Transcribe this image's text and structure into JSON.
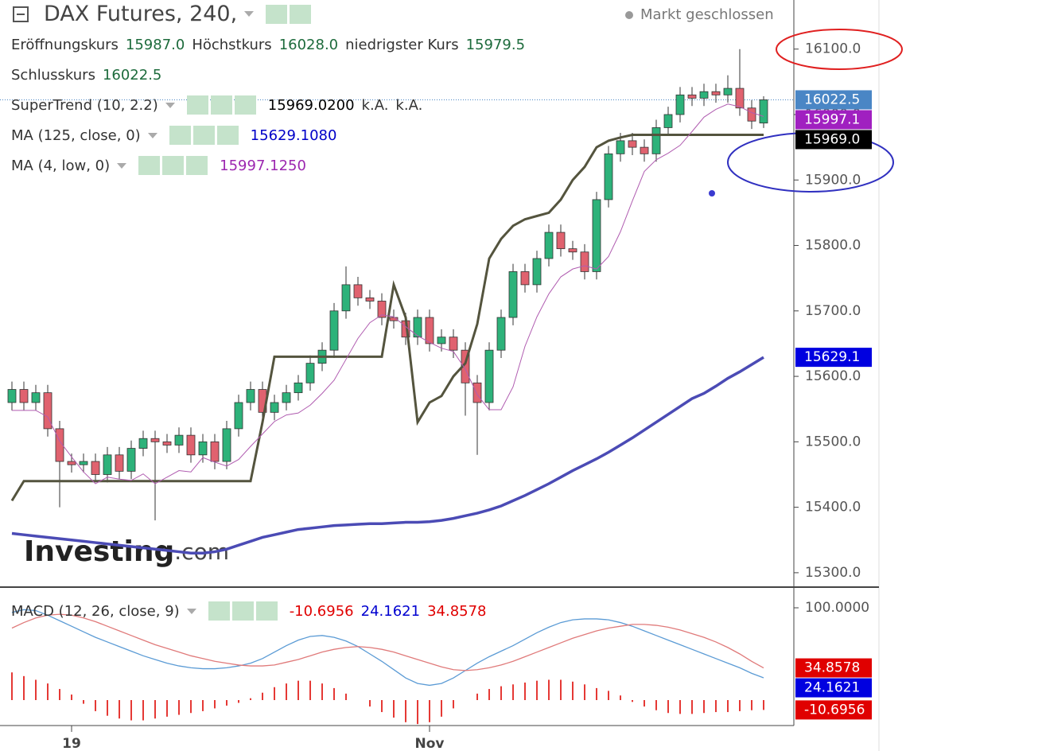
{
  "chart_data": [
    {
      "type": "candlestick",
      "title": "DAX Futures, 240,",
      "status": "Markt geschlossen",
      "categories": [
        null,
        null,
        null,
        null,
        null,
        "19",
        null,
        null,
        null,
        null,
        null,
        null,
        null,
        null,
        null,
        null,
        null,
        null,
        null,
        null,
        null,
        null,
        null,
        null,
        null,
        null,
        null,
        null,
        null,
        null,
        null,
        null,
        null,
        null,
        null,
        "Nov",
        null,
        null,
        null,
        null,
        null,
        null,
        null,
        null,
        null,
        null,
        null,
        null,
        null,
        null,
        null,
        null,
        null,
        null,
        null,
        null,
        null,
        null,
        null,
        null,
        null,
        null,
        null,
        null
      ],
      "open": [
        15560,
        15580,
        15560,
        15575,
        15520,
        15470,
        15465,
        15470,
        15450,
        15480,
        15455,
        15490,
        15505,
        15500,
        15495,
        15510,
        15480,
        15500,
        15470,
        15520,
        15560,
        15580,
        15545,
        15560,
        15575,
        15590,
        15620,
        15640,
        15700,
        15740,
        15720,
        15715,
        15690,
        15685,
        15660,
        15690,
        15650,
        15660,
        15640,
        15590,
        15560,
        15640,
        15690,
        15760,
        15740,
        15780,
        15820,
        15795,
        15790,
        15760,
        15870,
        15940,
        15960,
        15950,
        15940,
        15980,
        16000,
        16030,
        16025,
        16035,
        16030,
        16040,
        16010,
        15987
      ],
      "high": [
        15592,
        15592,
        15587,
        15587,
        15532,
        15482,
        15482,
        15482,
        15492,
        15492,
        15502,
        15517,
        15517,
        15512,
        15522,
        15522,
        15512,
        15512,
        15532,
        15572,
        15592,
        15592,
        15572,
        15587,
        15602,
        15632,
        15652,
        15712,
        15768,
        15752,
        15732,
        15727,
        15702,
        15697,
        15702,
        15702,
        15672,
        15672,
        15652,
        15602,
        15652,
        15702,
        15772,
        15772,
        15792,
        15832,
        15832,
        15807,
        15802,
        15882,
        15952,
        15972,
        15972,
        15962,
        15992,
        16012,
        16042,
        16042,
        16047,
        16047,
        16060,
        16100,
        16022,
        16028
      ],
      "low": [
        15548,
        15548,
        15548,
        15508,
        15400,
        15453,
        15453,
        15438,
        15438,
        15443,
        15443,
        15478,
        15380,
        15483,
        15483,
        15468,
        15468,
        15458,
        15458,
        15508,
        15548,
        15533,
        15533,
        15548,
        15563,
        15578,
        15608,
        15628,
        15688,
        15708,
        15703,
        15678,
        15673,
        15648,
        15648,
        15638,
        15638,
        15628,
        15540,
        15480,
        15548,
        15628,
        15678,
        15728,
        15728,
        15768,
        15783,
        15778,
        15748,
        15748,
        15858,
        15928,
        15938,
        15928,
        15928,
        15968,
        15988,
        16013,
        16013,
        16018,
        16018,
        15998,
        15978,
        15979.5
      ],
      "close": [
        15580,
        15560,
        15575,
        15520,
        15470,
        15465,
        15470,
        15450,
        15480,
        15455,
        15490,
        15505,
        15500,
        15495,
        15510,
        15480,
        15500,
        15470,
        15520,
        15560,
        15580,
        15545,
        15560,
        15575,
        15590,
        15620,
        15640,
        15700,
        15740,
        15720,
        15715,
        15690,
        15685,
        15660,
        15690,
        15650,
        15660,
        15640,
        15590,
        15560,
        15640,
        15690,
        15760,
        15740,
        15780,
        15820,
        15795,
        15790,
        15760,
        15870,
        15940,
        15960,
        15950,
        15940,
        15980,
        16000,
        16030,
        16025,
        16035,
        16030,
        16040,
        16010,
        15990,
        16022.5
      ],
      "ohlc_names": [
        "Eröffnungskurs",
        "Höchstkurs",
        "niedrigster Kurs",
        "Schlusskurs"
      ],
      "ohlc_value_labels": [
        "15987.0",
        "16028.0",
        "15979.5",
        "16022.5"
      ],
      "close_badge": "16022.5",
      "up_color": "#2db27a",
      "down_color": "#e0626f",
      "series": [
        {
          "name": "SuperTrend (10, 2.2)",
          "color": "#54543e",
          "legend_value": "15969.0200",
          "legend_extra": [
            "k.A.",
            "k.A."
          ],
          "badge": "15969.0",
          "values": [
            15410,
            15440,
            15440,
            15440,
            15440,
            15440,
            15440,
            15440,
            15440,
            15440,
            15440,
            15440,
            15440,
            15440,
            15440,
            15440,
            15440,
            15440,
            15440,
            15440,
            15440,
            15530,
            15630,
            15630,
            15630,
            15630,
            15630,
            15630,
            15630,
            15630,
            15630,
            15630,
            15740,
            15690,
            15530,
            15560,
            15570,
            15600,
            15620,
            15680,
            15780,
            15810,
            15830,
            15840,
            15845,
            15850,
            15870,
            15900,
            15920,
            15950,
            15960,
            15965,
            15969,
            15969,
            15969,
            15969,
            15969,
            15969,
            15969,
            15969,
            15969,
            15969,
            15969,
            15969.02
          ]
        },
        {
          "name": "MA (125, close, 0)",
          "color": "#4b4bb5",
          "legend_value": "15629.1080",
          "badge": "15629.1",
          "values": [
            15360,
            15358,
            15356,
            15354,
            15352,
            15350,
            15348,
            15346,
            15344,
            15342,
            15340,
            15338,
            15336,
            15334,
            15332,
            15330,
            15330,
            15332,
            15336,
            15342,
            15348,
            15354,
            15358,
            15362,
            15366,
            15368,
            15370,
            15372,
            15373,
            15374,
            15375,
            15375,
            15376,
            15377,
            15377,
            15378,
            15380,
            15383,
            15387,
            15391,
            15396,
            15402,
            15410,
            15418,
            15427,
            15436,
            15446,
            15456,
            15465,
            15474,
            15484,
            15495,
            15506,
            15518,
            15530,
            15542,
            15554,
            15566,
            15574,
            15585,
            15597,
            15607,
            15618,
            15629.108
          ]
        },
        {
          "name": "MA (4, low, 0)",
          "color": "#b05cb0",
          "legend_value": "15997.1250",
          "badge": "15997.1",
          "values": [
            15548,
            15548,
            15548,
            15538,
            15501,
            15477,
            15454,
            15436,
            15446,
            15443,
            15441,
            15451,
            15436,
            15446,
            15456,
            15454,
            15476,
            15469,
            15463,
            15473,
            15493,
            15512,
            15531,
            15541,
            15544,
            15556,
            15574,
            15594,
            15626,
            15658,
            15682,
            15694,
            15691,
            15676,
            15662,
            15652,
            15643,
            15638,
            15611,
            15572,
            15549,
            15549,
            15584,
            15646,
            15691,
            15726,
            15752,
            15764,
            15769,
            15764,
            15783,
            15821,
            15868,
            15913,
            15931,
            15941,
            15953,
            15974,
            15996,
            16008,
            16016,
            16012,
            16003,
            15997.125
          ]
        }
      ],
      "ylim": [
        15278,
        16175
      ],
      "yticks": [
        {
          "value": 15300,
          "label": "15300.0"
        },
        {
          "value": 15400,
          "label": "15400.0"
        },
        {
          "value": 15500,
          "label": "15500.0"
        },
        {
          "value": 15600,
          "label": "15600.0"
        },
        {
          "value": 15700,
          "label": "15700.0"
        },
        {
          "value": 15800,
          "label": "15800.0"
        },
        {
          "value": 15900,
          "label": "15900.0"
        },
        {
          "value": 16000,
          "label": "16000.0"
        },
        {
          "value": 16100,
          "label": "16100.0"
        }
      ],
      "watermark": [
        "Investing",
        ".com"
      ]
    },
    {
      "type": "macd",
      "title": "MACD (12, 26, close, 9)",
      "ylim": [
        -27.6,
        120.7
      ],
      "yticks": [
        {
          "value": 100,
          "label": "100.0000"
        }
      ],
      "series": [
        {
          "kind": "bar",
          "color": "#e53935",
          "legend_value": "-10.6956",
          "badge": "-10.6956",
          "values": [
            30,
            26,
            22,
            18,
            12,
            6,
            -4,
            -12,
            -17,
            -20,
            -22,
            -22,
            -20,
            -18,
            -16,
            -14,
            -12,
            -9,
            -6,
            -3,
            2,
            8,
            14,
            18,
            21,
            21,
            18,
            13,
            7,
            0,
            -7,
            -13,
            -19,
            -24,
            -26,
            -24,
            -18,
            -9,
            0,
            7,
            12,
            15,
            17,
            19,
            21,
            22,
            22,
            20,
            17,
            13,
            10,
            5,
            -2,
            -7,
            -11,
            -14,
            -15,
            -15,
            -14,
            -13,
            -13,
            -12,
            -11,
            -10.6956
          ]
        },
        {
          "kind": "line",
          "color": "#5b9bd5",
          "legend_value": "24.1621",
          "badge": "24.1621",
          "values": [
            95,
            98,
            97,
            92,
            86,
            80,
            74,
            68,
            63,
            58,
            53,
            48,
            44,
            40,
            37,
            35,
            34,
            34,
            35,
            37,
            40,
            45,
            52,
            59,
            65,
            69,
            70,
            68,
            64,
            58,
            50,
            42,
            33,
            24,
            18,
            16,
            18,
            24,
            32,
            40,
            47,
            53,
            59,
            66,
            73,
            79,
            84,
            87,
            88,
            88,
            87,
            84,
            80,
            75,
            70,
            65,
            60,
            55,
            50,
            45,
            40,
            35,
            29,
            24.1621
          ]
        },
        {
          "kind": "line",
          "color": "#e07a7a",
          "legend_value": "34.8578",
          "badge": "34.8578",
          "values": [
            78,
            84,
            89,
            92,
            93,
            92,
            89,
            85,
            80,
            75,
            70,
            65,
            60,
            56,
            52,
            48,
            45,
            42,
            40,
            38,
            37,
            37,
            38,
            41,
            44,
            48,
            52,
            55,
            57,
            58,
            57,
            55,
            52,
            48,
            44,
            40,
            36,
            33,
            32,
            33,
            35,
            38,
            42,
            47,
            52,
            57,
            62,
            67,
            71,
            75,
            78,
            80,
            82,
            82,
            81,
            79,
            76,
            72,
            68,
            63,
            57,
            50,
            42,
            34.8578
          ]
        }
      ]
    }
  ]
}
